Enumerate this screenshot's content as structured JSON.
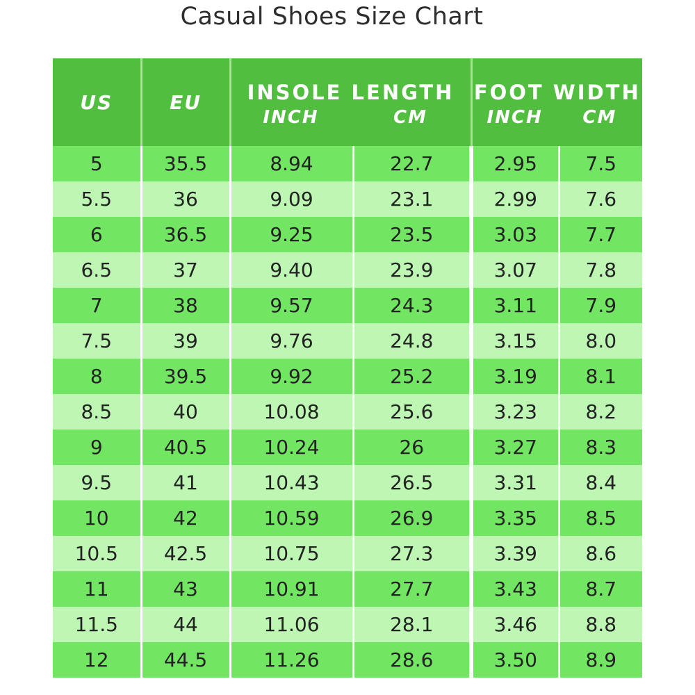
{
  "title": "Casual Shoes Size Chart",
  "header": {
    "us": "US",
    "eu": "EU",
    "insole_length": "INSOLE LENGTH",
    "foot_width": "FOOT WIDTH",
    "inch": "INCH",
    "cm": "CM"
  },
  "colors": {
    "header_bg": "#52be3f",
    "row_dark": "#72e563",
    "row_light": "#bdf7b3"
  },
  "rows": [
    {
      "us": "5",
      "eu": "35.5",
      "insole_inch": "8.94",
      "insole_cm": "22.7",
      "width_inch": "2.95",
      "width_cm": "7.5"
    },
    {
      "us": "5.5",
      "eu": "36",
      "insole_inch": "9.09",
      "insole_cm": "23.1",
      "width_inch": "2.99",
      "width_cm": "7.6"
    },
    {
      "us": "6",
      "eu": "36.5",
      "insole_inch": "9.25",
      "insole_cm": "23.5",
      "width_inch": "3.03",
      "width_cm": "7.7"
    },
    {
      "us": "6.5",
      "eu": "37",
      "insole_inch": "9.40",
      "insole_cm": "23.9",
      "width_inch": "3.07",
      "width_cm": "7.8"
    },
    {
      "us": "7",
      "eu": "38",
      "insole_inch": "9.57",
      "insole_cm": "24.3",
      "width_inch": "3.11",
      "width_cm": "7.9"
    },
    {
      "us": "7.5",
      "eu": "39",
      "insole_inch": "9.76",
      "insole_cm": "24.8",
      "width_inch": "3.15",
      "width_cm": "8.0"
    },
    {
      "us": "8",
      "eu": "39.5",
      "insole_inch": "9.92",
      "insole_cm": "25.2",
      "width_inch": "3.19",
      "width_cm": "8.1"
    },
    {
      "us": "8.5",
      "eu": "40",
      "insole_inch": "10.08",
      "insole_cm": "25.6",
      "width_inch": "3.23",
      "width_cm": "8.2"
    },
    {
      "us": "9",
      "eu": "40.5",
      "insole_inch": "10.24",
      "insole_cm": "26",
      "width_inch": "3.27",
      "width_cm": "8.3"
    },
    {
      "us": "9.5",
      "eu": "41",
      "insole_inch": "10.43",
      "insole_cm": "26.5",
      "width_inch": "3.31",
      "width_cm": "8.4"
    },
    {
      "us": "10",
      "eu": "42",
      "insole_inch": "10.59",
      "insole_cm": "26.9",
      "width_inch": "3.35",
      "width_cm": "8.5"
    },
    {
      "us": "10.5",
      "eu": "42.5",
      "insole_inch": "10.75",
      "insole_cm": "27.3",
      "width_inch": "3.39",
      "width_cm": "8.6"
    },
    {
      "us": "11",
      "eu": "43",
      "insole_inch": "10.91",
      "insole_cm": "27.7",
      "width_inch": "3.43",
      "width_cm": "8.7"
    },
    {
      "us": "11.5",
      "eu": "44",
      "insole_inch": "11.06",
      "insole_cm": "28.1",
      "width_inch": "3.46",
      "width_cm": "8.8"
    },
    {
      "us": "12",
      "eu": "44.5",
      "insole_inch": "11.26",
      "insole_cm": "28.6",
      "width_inch": "3.50",
      "width_cm": "8.9"
    }
  ]
}
